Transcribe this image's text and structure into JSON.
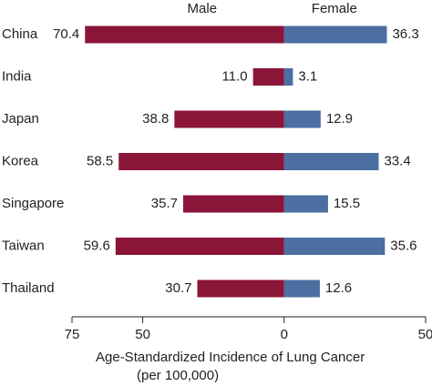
{
  "chart_data": {
    "type": "butterfly-bar",
    "categories": [
      "China",
      "India",
      "Japan",
      "Korea",
      "Singapore",
      "Taiwan",
      "Thailand"
    ],
    "series": [
      {
        "name": "Male",
        "color": "#8b1538",
        "side": "left",
        "values": [
          70.4,
          11.0,
          38.8,
          58.5,
          35.7,
          59.6,
          30.7
        ],
        "value_labels": [
          "70.4",
          "11.0",
          "38.8",
          "58.5",
          "35.7",
          "59.6",
          "30.7"
        ]
      },
      {
        "name": "Female",
        "color": "#4a6fa0",
        "side": "right",
        "values": [
          36.3,
          3.1,
          12.9,
          33.4,
          15.5,
          35.6,
          12.6
        ],
        "value_labels": [
          "36.3",
          "3.1",
          "12.9",
          "33.4",
          "15.5",
          "35.6",
          "12.6"
        ]
      }
    ],
    "xlim": [
      -75,
      50
    ],
    "xticks": [
      {
        "value": -75,
        "label": "75"
      },
      {
        "value": -50,
        "label": "50"
      },
      0,
      50
    ],
    "xlabel": [
      "Age-Standardized Incidence of Lung Cancer",
      "(per 100,000)"
    ]
  }
}
